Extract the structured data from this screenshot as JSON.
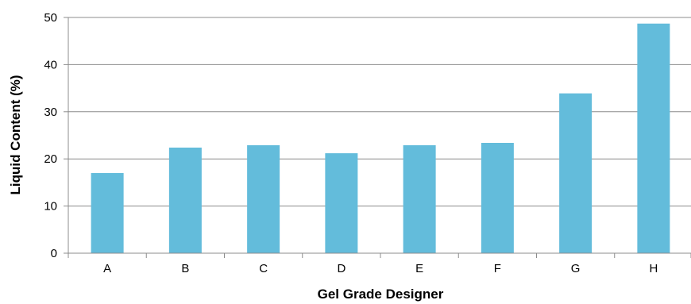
{
  "chart_data": {
    "type": "bar",
    "title": "",
    "xlabel": "Gel Grade Designer",
    "ylabel": "Liquid Content (%)",
    "categories": [
      "A",
      "B",
      "C",
      "D",
      "E",
      "F",
      "G",
      "H"
    ],
    "values": [
      17.0,
      22.4,
      22.9,
      21.2,
      22.9,
      23.4,
      33.9,
      48.7
    ],
    "ylim": [
      0,
      50
    ],
    "yticks": [
      0,
      10,
      20,
      30,
      40,
      50
    ],
    "grid": true,
    "legend": "none",
    "colors": {
      "bar": "#63bcdb",
      "grid": "#8c8c8c",
      "axis": "#8c8c8c",
      "text": "#000000"
    }
  }
}
